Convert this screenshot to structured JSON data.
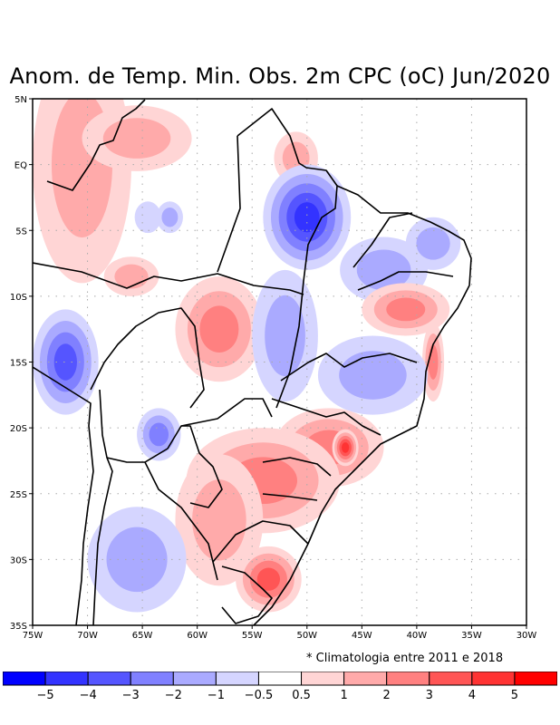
{
  "title": "Anom. de Temp. Min. Obs. 2m CPC (oC) Jun/2020",
  "note": "* Climatologia entre 2011 e 2018",
  "map": {
    "lon_range": [
      -75,
      -30
    ],
    "lat_range": [
      -35,
      5
    ],
    "x_ticks": [
      {
        "value": -75,
        "label": "75W"
      },
      {
        "value": -70,
        "label": "70W"
      },
      {
        "value": -65,
        "label": "65W"
      },
      {
        "value": -60,
        "label": "60W"
      },
      {
        "value": -55,
        "label": "55W"
      },
      {
        "value": -50,
        "label": "50W"
      },
      {
        "value": -45,
        "label": "45W"
      },
      {
        "value": -40,
        "label": "40W"
      },
      {
        "value": -35,
        "label": "35W"
      },
      {
        "value": -30,
        "label": "30W"
      }
    ],
    "y_ticks": [
      {
        "value": 5,
        "label": "5N"
      },
      {
        "value": 0,
        "label": "EQ"
      },
      {
        "value": -5,
        "label": "5S"
      },
      {
        "value": -10,
        "label": "10S"
      },
      {
        "value": -15,
        "label": "15S"
      },
      {
        "value": -20,
        "label": "20S"
      },
      {
        "value": -25,
        "label": "25S"
      },
      {
        "value": -30,
        "label": "30S"
      },
      {
        "value": -35,
        "label": "35S"
      }
    ],
    "grid": "dotted",
    "anomaly_regions": [
      {
        "name": "northwest-warm",
        "lon": -70.5,
        "lat": 0,
        "rx": 4.5,
        "ry": 9,
        "value": 1.5
      },
      {
        "name": "amazon-north-warm",
        "lon": -65.5,
        "lat": 2,
        "rx": 5,
        "ry": 2.5,
        "value": 1.5
      },
      {
        "name": "amapa-warm",
        "lon": -51,
        "lat": 0.5,
        "rx": 2,
        "ry": 2,
        "value": 1.5
      },
      {
        "name": "para-cold",
        "lon": -50,
        "lat": -4,
        "rx": 4,
        "ry": 4,
        "value": -4.5
      },
      {
        "name": "amazon-cold-small",
        "lon": -62.5,
        "lat": -4,
        "rx": 1.2,
        "ry": 1.2,
        "value": -1.5
      },
      {
        "name": "amazon-cold-small-2",
        "lon": -64.5,
        "lat": -4,
        "rx": 1.2,
        "ry": 1.2,
        "value": -0.8
      },
      {
        "name": "acre-warm",
        "lon": -66,
        "lat": -8.5,
        "rx": 2.5,
        "ry": 1.5,
        "value": 1.5
      },
      {
        "name": "bolivia-cold",
        "lon": -72,
        "lat": -15,
        "rx": 3,
        "ry": 4,
        "value": -3.5
      },
      {
        "name": "mato-grosso-warm",
        "lon": -58,
        "lat": -12.5,
        "rx": 4,
        "ry": 4,
        "value": 2.5
      },
      {
        "name": "central-cold",
        "lon": -52,
        "lat": -13,
        "rx": 3,
        "ry": 5,
        "value": -1.5
      },
      {
        "name": "maranhao-cold",
        "lon": -43,
        "lat": -8,
        "rx": 4,
        "ry": 2.5,
        "value": -2
      },
      {
        "name": "ceara-cold",
        "lon": -38.5,
        "lat": -6,
        "rx": 2.5,
        "ry": 2,
        "value": -2
      },
      {
        "name": "bahia-warm",
        "lon": -41,
        "lat": -11,
        "rx": 4,
        "ry": 2,
        "value": 2.5
      },
      {
        "name": "bahia-coast-warm",
        "lon": -38.5,
        "lat": -15,
        "rx": 1,
        "ry": 3,
        "value": 3
      },
      {
        "name": "minas-cold",
        "lon": -44,
        "lat": -16,
        "rx": 5,
        "ry": 3,
        "value": -1.5
      },
      {
        "name": "paraguay-cold",
        "lon": -63.5,
        "lat": -20.5,
        "rx": 2,
        "ry": 2,
        "value": -2.5
      },
      {
        "name": "sao-paulo-warm",
        "lon": -48,
        "lat": -21.5,
        "rx": 5,
        "ry": 3,
        "value": 3
      },
      {
        "name": "sao-paulo-peak",
        "lon": -46.5,
        "lat": -21.5,
        "rx": 1.2,
        "ry": 1.4,
        "value": 5
      },
      {
        "name": "south-brazil-warm",
        "lon": -54,
        "lat": -24,
        "rx": 7,
        "ry": 4,
        "value": 2.5
      },
      {
        "name": "argentina-warm",
        "lon": -58,
        "lat": -27,
        "rx": 4,
        "ry": 5,
        "value": 2
      },
      {
        "name": "rio-grande-warm",
        "lon": -53.5,
        "lat": -31.5,
        "rx": 3,
        "ry": 2.5,
        "value": 3.5
      },
      {
        "name": "argentina-cold",
        "lon": -65.5,
        "lat": -30,
        "rx": 4.5,
        "ry": 4,
        "value": -1.5
      }
    ]
  },
  "colorbar": {
    "colors": [
      "#0000ff",
      "#3333ff",
      "#5555ff",
      "#8080ff",
      "#aaaaff",
      "#d5d5ff",
      "#ffffff",
      "#ffd5d5",
      "#ffaaaa",
      "#ff8080",
      "#ff5555",
      "#ff3333",
      "#ff0000"
    ],
    "labels": [
      "-5",
      "-4",
      "-3",
      "-2",
      "-1",
      "-0.5",
      "0.5",
      "1",
      "2",
      "3",
      "4",
      "5"
    ]
  }
}
